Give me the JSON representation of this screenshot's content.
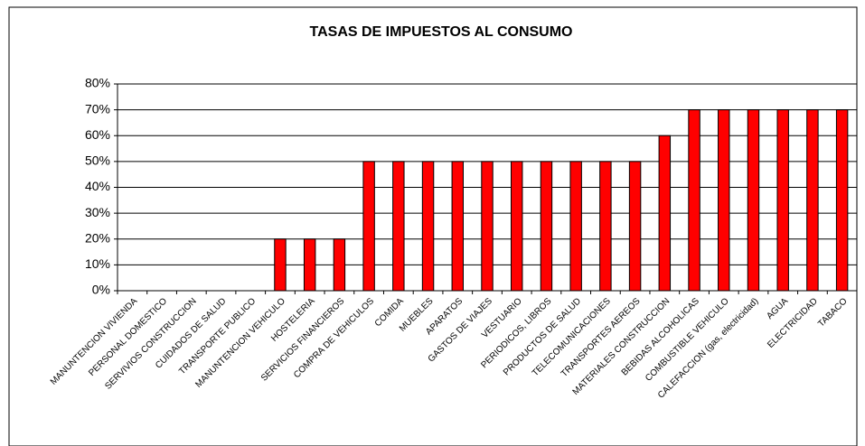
{
  "chart_data": {
    "type": "bar",
    "title": "TASAS DE IMPUESTOS AL CONSUMO",
    "categories": [
      "MANUNTENCION VIVIENDA",
      "PERSONAL DOMESTICO",
      "SERVIVIOS CONSTRUCCION",
      "CUIDADOS DE SALUD",
      "TRANSPORTE PUBLICO",
      "MANUNTENCION VEHICULO",
      "HOSTELERIA",
      "SERVICIOS FINANCIEROS",
      "COMPRA DE VEHICULOS",
      "COMIDA",
      "MUEBLES",
      "APARATOS",
      "GASTOS DE VIAJES",
      "VESTUARIO",
      "PERIODICOS, LIBROS",
      "PRODUCTOS DE SALUD",
      "TELECOMUNICACIONES",
      "TRANSPORTES AEREOS",
      "MATERIALES CONSTRUCCION",
      "BEBIDAS ALCOHOLICAS",
      "COMBUSTIBLE VEHICULO",
      "CALEFACCION (gas, electricidad)",
      "AGUA",
      "ELECTRICIDAD",
      "TABACO"
    ],
    "values": [
      0,
      0,
      0,
      0,
      0,
      20,
      20,
      20,
      50,
      50,
      50,
      50,
      50,
      50,
      50,
      50,
      50,
      50,
      60,
      70,
      70,
      70,
      70,
      70,
      70
    ],
    "color": "#ff0000",
    "ylim": [
      0,
      80
    ],
    "yticks": [
      {
        "value": 0,
        "label": "0%"
      },
      {
        "value": 10,
        "label": "10%"
      },
      {
        "value": 20,
        "label": "20%"
      },
      {
        "value": 30,
        "label": "30%"
      },
      {
        "value": 40,
        "label": "40%"
      },
      {
        "value": 50,
        "label": "50%"
      },
      {
        "value": 60,
        "label": "60%"
      },
      {
        "value": 70,
        "label": "70%"
      },
      {
        "value": 80,
        "label": "80%"
      }
    ],
    "grid": true
  }
}
